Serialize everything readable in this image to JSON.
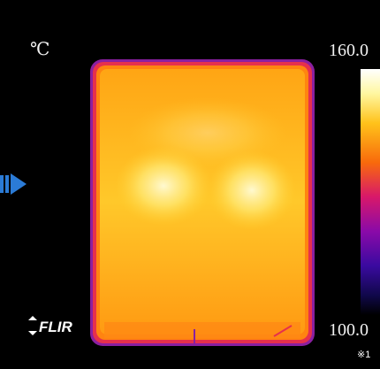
{
  "unit": "℃",
  "scale": {
    "max": "160.0",
    "min": "100.0"
  },
  "logo": "FLIR",
  "note": "※1"
}
